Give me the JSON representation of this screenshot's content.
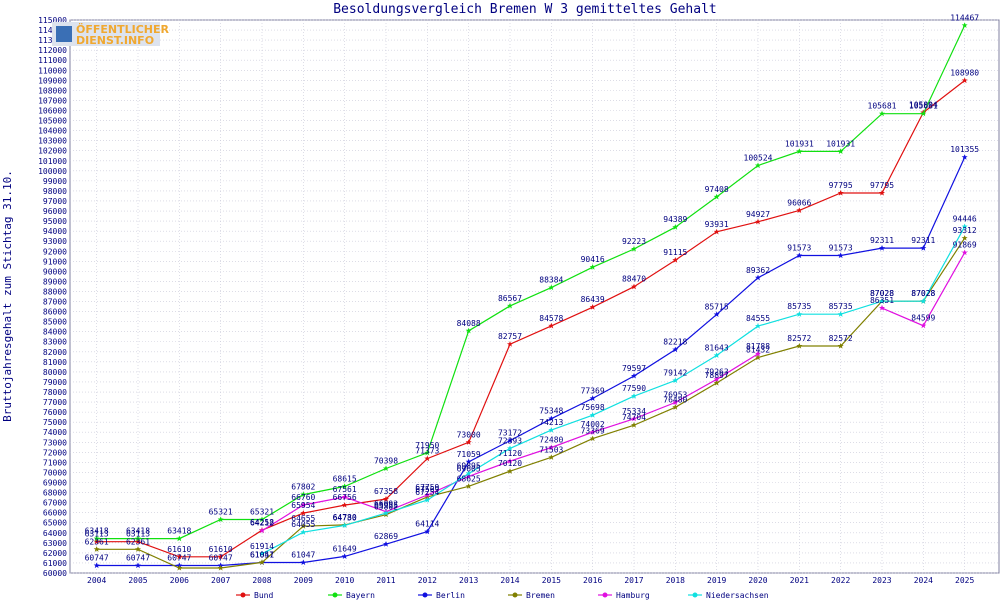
{
  "logo": {
    "line1": "ÖFFENTLICHER",
    "line2": "DIENST.INFO"
  },
  "chart_data": {
    "type": "line",
    "title": "Besoldungsvergleich Bremen W 3 gemitteltes Gehalt",
    "xlabel": "",
    "ylabel": "Bruttojahresgehalt zum Stichtag 31.10.",
    "ylim": [
      60000,
      115000
    ],
    "ystep": 1000,
    "grid": true,
    "legend_position": "bottom",
    "x": [
      "2004",
      "2005",
      "2006",
      "2007",
      "2008",
      "2009",
      "2010",
      "2011",
      "2012",
      "2013",
      "2014",
      "2015",
      "2016",
      "2017",
      "2018",
      "2019",
      "2020",
      "2021",
      "2022",
      "2023",
      "2024",
      "2025"
    ],
    "series": [
      {
        "name": "Bund",
        "color": "#e01010",
        "values": [
          63113,
          63113,
          61610,
          61610,
          64258,
          65954,
          66756,
          67358,
          71373,
          73000,
          82757,
          84578,
          86439,
          88470,
          91115,
          93931,
          94927,
          96066,
          97795,
          97795,
          105804,
          108980
        ]
      },
      {
        "name": "Bayern",
        "color": "#10e010",
        "values": [
          63418,
          63418,
          63418,
          65321,
          65321,
          67802,
          68615,
          70398,
          71950,
          84088,
          86567,
          88384,
          90416,
          92223,
          94389,
          97408,
          100524,
          101931,
          101931,
          105681,
          105681,
          114467
        ]
      },
      {
        "name": "Berlin",
        "color": "#1010e0",
        "values": [
          60747,
          60747,
          60747,
          60747,
          61047,
          61047,
          61649,
          62869,
          64114,
          71059,
          73172,
          75348,
          77369,
          79597,
          82218,
          85715,
          89362,
          91573,
          91573,
          92311,
          92311,
          101355
        ]
      },
      {
        "name": "Bremen",
        "color": "#808000",
        "values": [
          62361,
          62361,
          60500,
          60500,
          61051,
          64655,
          64780,
          65802,
          67569,
          68625,
          70120,
          71503,
          73369,
          74704,
          76480,
          78897,
          81432,
          82572,
          82572,
          87028,
          87028,
          93312
        ]
      },
      {
        "name": "Hamburg",
        "color": "#e010e0",
        "values": [
          null,
          null,
          null,
          null,
          64212,
          66760,
          67561,
          66092,
          67759,
          69605,
          71120,
          72480,
          74002,
          75334,
          76953,
          79263,
          81788,
          null,
          null,
          86351,
          84599,
          91869
        ]
      },
      {
        "name": "Niedersachsen",
        "color": "#10e0e0",
        "values": [
          null,
          null,
          null,
          null,
          61914,
          64055,
          64730,
          65955,
          67254,
          69895,
          72393,
          74213,
          75698,
          77590,
          79142,
          81643,
          84555,
          85735,
          85735,
          87028,
          87028,
          94446
        ]
      }
    ],
    "data_labels": [
      {
        "series": "Bund",
        "points": [
          [
            0,
            "63113"
          ],
          [
            1,
            "63113"
          ],
          [
            2,
            "61610"
          ],
          [
            3,
            "61610"
          ],
          [
            4,
            "64258"
          ],
          [
            5,
            "65954"
          ],
          [
            6,
            "66756"
          ],
          [
            7,
            "67358"
          ],
          [
            8,
            "71373"
          ],
          [
            9,
            "73000"
          ],
          [
            10,
            "82757"
          ],
          [
            11,
            "84578"
          ],
          [
            12,
            "86439"
          ],
          [
            13,
            "88470"
          ],
          [
            14,
            "91115"
          ],
          [
            15,
            "93931"
          ],
          [
            16,
            "94927"
          ],
          [
            17,
            "96066"
          ],
          [
            18,
            "97795"
          ],
          [
            19,
            "97795"
          ],
          [
            20,
            "105804"
          ],
          [
            21,
            "108980"
          ]
        ]
      },
      {
        "series": "Bayern",
        "points": [
          [
            0,
            "63418"
          ],
          [
            1,
            "63418"
          ],
          [
            2,
            "63418"
          ],
          [
            3,
            "65321"
          ],
          [
            4,
            "65321"
          ],
          [
            5,
            "67802"
          ],
          [
            6,
            "68615"
          ],
          [
            7,
            "70398"
          ],
          [
            8,
            "71950"
          ],
          [
            9,
            "84088"
          ],
          [
            10,
            "86567"
          ],
          [
            11,
            "88384"
          ],
          [
            12,
            "90416"
          ],
          [
            13,
            "92223"
          ],
          [
            14,
            "94389"
          ],
          [
            15,
            "97408"
          ],
          [
            16,
            "100524"
          ],
          [
            17,
            "101931"
          ],
          [
            18,
            "101931"
          ],
          [
            19,
            "105681"
          ],
          [
            20,
            "105681"
          ],
          [
            21,
            "114467"
          ]
        ]
      },
      {
        "series": "Berlin",
        "points": [
          [
            0,
            "60747"
          ],
          [
            1,
            "60747"
          ],
          [
            2,
            "60747"
          ],
          [
            3,
            "60747"
          ],
          [
            4,
            "61047"
          ],
          [
            5,
            "61047"
          ],
          [
            6,
            "61649"
          ],
          [
            7,
            "62869"
          ],
          [
            8,
            "64114"
          ],
          [
            9,
            "71059"
          ],
          [
            10,
            "73172"
          ],
          [
            11,
            "75348"
          ],
          [
            12,
            "77369"
          ],
          [
            13,
            "79597"
          ],
          [
            14,
            "82218"
          ],
          [
            15,
            "85715"
          ],
          [
            16,
            "89362"
          ],
          [
            17,
            "91573"
          ],
          [
            18,
            "91573"
          ],
          [
            19,
            "92311"
          ],
          [
            20,
            "92311"
          ],
          [
            21,
            "101355"
          ]
        ]
      },
      {
        "series": "Bremen",
        "points": [
          [
            0,
            "62361"
          ],
          [
            1,
            "62361"
          ],
          [
            4,
            "61051"
          ],
          [
            5,
            "64655"
          ],
          [
            6,
            "64780"
          ],
          [
            7,
            "65802"
          ],
          [
            8,
            "67569"
          ],
          [
            9,
            "68625"
          ],
          [
            10,
            "70120"
          ],
          [
            11,
            "71503"
          ],
          [
            12,
            "73369"
          ],
          [
            13,
            "74704"
          ],
          [
            14,
            "76480"
          ],
          [
            15,
            "78897"
          ],
          [
            16,
            "81432"
          ],
          [
            17,
            "82572"
          ],
          [
            18,
            "82572"
          ],
          [
            19,
            "87028"
          ],
          [
            20,
            "87028"
          ],
          [
            21,
            "93312"
          ]
        ]
      },
      {
        "series": "Hamburg",
        "points": [
          [
            4,
            "64212"
          ],
          [
            5,
            "66760"
          ],
          [
            6,
            "67561"
          ],
          [
            7,
            "66092"
          ],
          [
            8,
            "67759"
          ],
          [
            9,
            "69605"
          ],
          [
            10,
            "71120"
          ],
          [
            11,
            "72480"
          ],
          [
            12,
            "74002"
          ],
          [
            13,
            "75334"
          ],
          [
            14,
            "76953"
          ],
          [
            15,
            "79263"
          ],
          [
            16,
            "81788"
          ],
          [
            19,
            "86351"
          ],
          [
            20,
            "84599"
          ],
          [
            21,
            "91869"
          ]
        ]
      },
      {
        "series": "Niedersachsen",
        "points": [
          [
            4,
            "61914"
          ],
          [
            5,
            "64055"
          ],
          [
            6,
            "64730"
          ],
          [
            7,
            "65955"
          ],
          [
            8,
            "67254"
          ],
          [
            9,
            "69895"
          ],
          [
            10,
            "72393"
          ],
          [
            11,
            "74213"
          ],
          [
            12,
            "75698"
          ],
          [
            13,
            "77590"
          ],
          [
            14,
            "79142"
          ],
          [
            15,
            "81643"
          ],
          [
            16,
            "84555"
          ],
          [
            17,
            "85735"
          ],
          [
            18,
            "85735"
          ],
          [
            19,
            "87028"
          ],
          [
            20,
            "87028"
          ],
          [
            21,
            "94446"
          ]
        ]
      }
    ]
  }
}
